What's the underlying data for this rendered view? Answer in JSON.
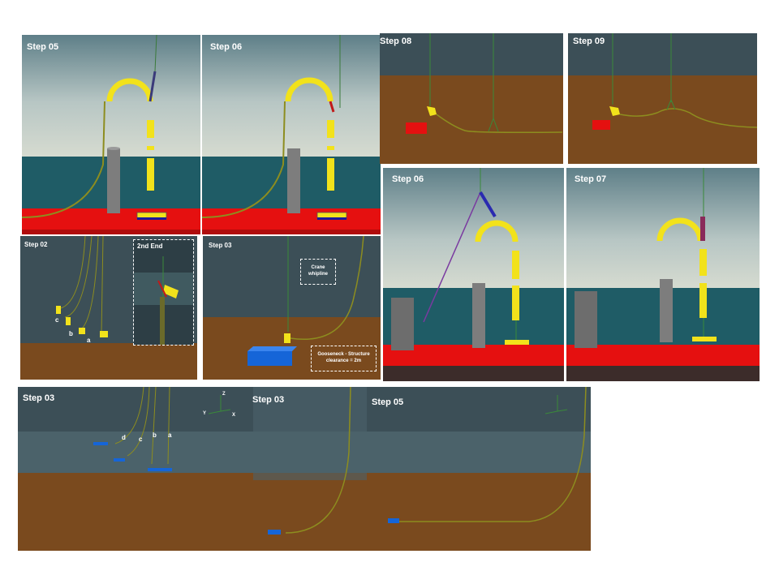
{
  "panels": {
    "p1": {
      "step": "Step 05"
    },
    "p2": {
      "step": "Step 06"
    },
    "p3": {
      "step": "Step 08"
    },
    "p4": {
      "step": "Step 09"
    },
    "p5": {
      "step": "Step 02",
      "inset_title": "2nd End",
      "labels": {
        "a": "a",
        "b": "b",
        "c": "c"
      }
    },
    "p6": {
      "step": "Step 03",
      "crane_line1": "Crane",
      "crane_line2": "whipline",
      "clear_line1": "Gooseneck - Structure",
      "clear_line2": "clearance = 2m"
    },
    "p7": {
      "step": "Step 06"
    },
    "p8": {
      "step": "Step 07"
    },
    "p9": {
      "step_a": "Step 03",
      "step_b": "Step 03",
      "step_c": "Step 05",
      "labels": {
        "a": "a",
        "b": "b",
        "c": "c",
        "d": "d"
      },
      "axis": {
        "z": "Z",
        "y": "Y",
        "x": "X"
      }
    }
  },
  "colors": {
    "seabed": "#7a4a1e",
    "water_deep": "#2b4a55",
    "sky": "#8fa9b5",
    "structure_red": "#e01010",
    "buoyancy_yellow": "#f2e21b",
    "pipe": "#9a9a2a",
    "pile_grey": "#7d7d7d",
    "base_blue": "#1565d8"
  }
}
